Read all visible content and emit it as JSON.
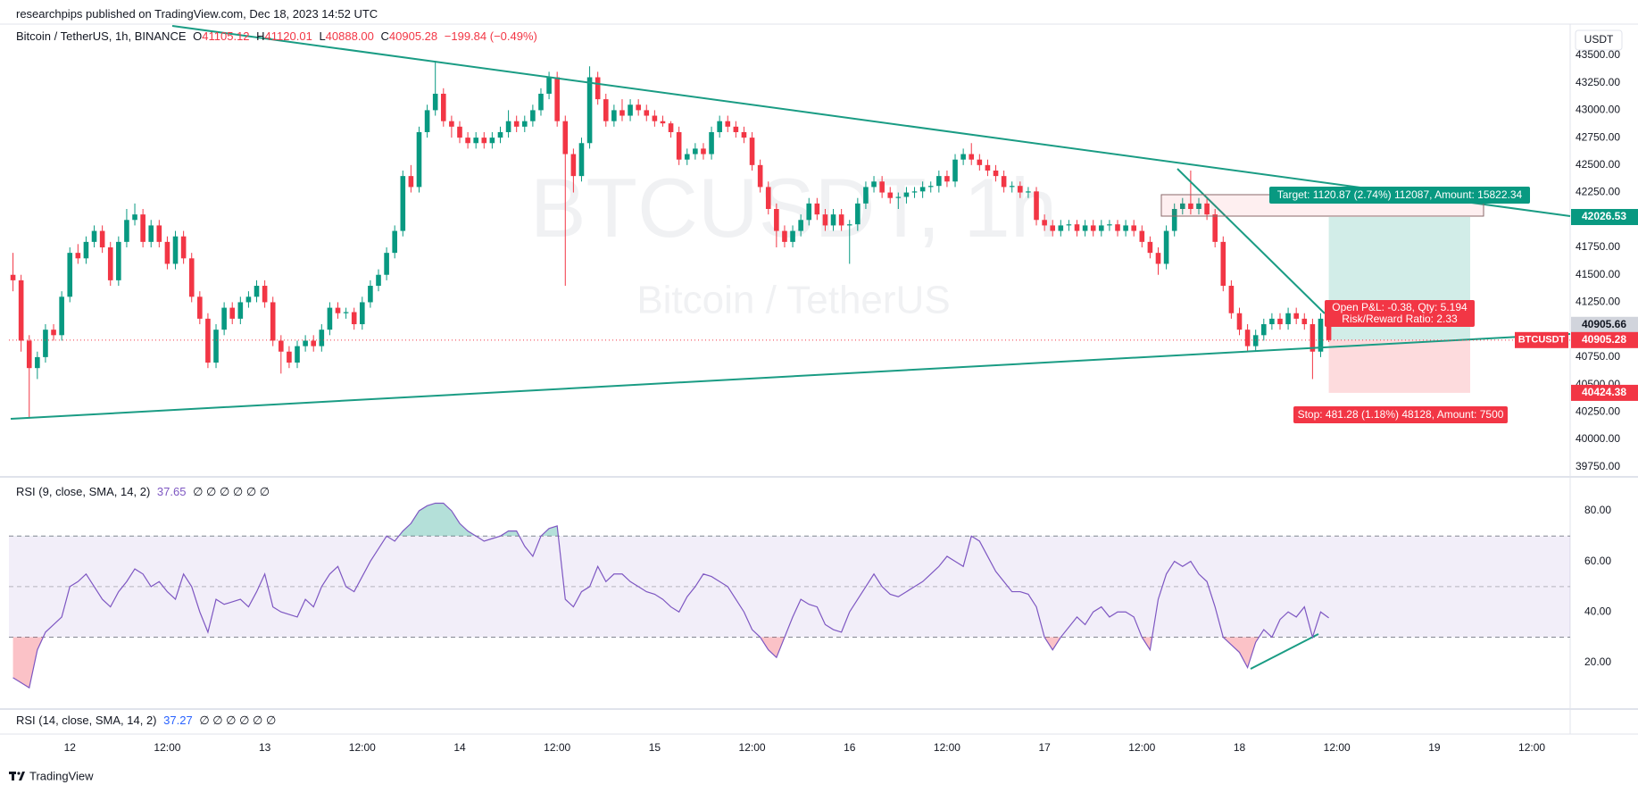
{
  "header": {
    "published": "researchpips published on TradingView.com, Dec 18, 2023 14:52 UTC"
  },
  "chart_data": {
    "type": "candlestick",
    "symbol": "Bitcoin / TetherUS, 1h, BINANCE",
    "ohlc_legend": [
      {
        "label": "O",
        "value": "41105.12"
      },
      {
        "label": "H",
        "value": "41120.01"
      },
      {
        "label": "L",
        "value": "40888.00"
      },
      {
        "label": "C",
        "value": "40905.28"
      }
    ],
    "change": "−199.84 (−0.49%)",
    "currency": "USDT",
    "watermark": {
      "symbol": "BTCUSDT, 1h",
      "description": "Bitcoin / TetherUS"
    },
    "up_color": "#089981",
    "down_color": "#f23645",
    "grid": false,
    "xlim": [
      -0.5,
      191.5
    ],
    "xticks": [
      {
        "value": 7,
        "label": "12"
      },
      {
        "value": 19,
        "label": "12:00"
      },
      {
        "value": 31,
        "label": "13"
      },
      {
        "value": 43,
        "label": "12:00"
      },
      {
        "value": 55,
        "label": "14"
      },
      {
        "value": 67,
        "label": "12:00"
      },
      {
        "value": 79,
        "label": "15"
      },
      {
        "value": 91,
        "label": "12:00"
      },
      {
        "value": 103,
        "label": "16"
      },
      {
        "value": 115,
        "label": "12:00"
      },
      {
        "value": 127,
        "label": "17"
      },
      {
        "value": 139,
        "label": "12:00"
      },
      {
        "value": 151,
        "label": "18"
      },
      {
        "value": 163,
        "label": "12:00"
      },
      {
        "value": 175,
        "label": "19"
      },
      {
        "value": 187,
        "label": "12:00"
      }
    ],
    "ylim": [
      39675,
      43760
    ],
    "yticks": [
      {
        "value": 39750,
        "label": "39750.00"
      },
      {
        "value": 40000,
        "label": "40000.00"
      },
      {
        "value": 40250,
        "label": "40250.00"
      },
      {
        "value": 40500,
        "label": "40500.00"
      },
      {
        "value": 40750,
        "label": "40750.00"
      },
      {
        "value": 41000,
        "label": "41000.00"
      },
      {
        "value": 41250,
        "label": "41250.00"
      },
      {
        "value": 41500,
        "label": "41500.00"
      },
      {
        "value": 41750,
        "label": "41750.00"
      },
      {
        "value": 42000,
        "label": "42000.00"
      },
      {
        "value": 42250,
        "label": "42250.00"
      },
      {
        "value": 42500,
        "label": "42500.00"
      },
      {
        "value": 42750,
        "label": "42750.00"
      },
      {
        "value": 43000,
        "label": "43000.00"
      },
      {
        "value": 43250,
        "label": "43250.00"
      },
      {
        "value": 43500,
        "label": "43500.00"
      }
    ],
    "ohlc": [
      [
        41500,
        41700,
        41350,
        41450
      ],
      [
        41450,
        41500,
        40800,
        40900
      ],
      [
        40900,
        40950,
        40200,
        40650
      ],
      [
        40650,
        40800,
        40550,
        40750
      ],
      [
        40750,
        41050,
        40700,
        41000
      ],
      [
        41000,
        41050,
        40900,
        40950
      ],
      [
        40950,
        41350,
        40900,
        41300
      ],
      [
        41300,
        41750,
        41250,
        41700
      ],
      [
        41700,
        41780,
        41600,
        41650
      ],
      [
        41650,
        41850,
        41600,
        41800
      ],
      [
        41800,
        41950,
        41750,
        41900
      ],
      [
        41900,
        41950,
        41700,
        41750
      ],
      [
        41750,
        41800,
        41400,
        41450
      ],
      [
        41450,
        41850,
        41400,
        41800
      ],
      [
        41800,
        42100,
        41750,
        42000
      ],
      [
        42000,
        42150,
        41950,
        42050
      ],
      [
        42050,
        42100,
        41750,
        41800
      ],
      [
        41800,
        42000,
        41750,
        41950
      ],
      [
        41950,
        42000,
        41750,
        41800
      ],
      [
        41800,
        41850,
        41550,
        41600
      ],
      [
        41600,
        41900,
        41550,
        41850
      ],
      [
        41850,
        41900,
        41600,
        41650
      ],
      [
        41650,
        41700,
        41250,
        41300
      ],
      [
        41300,
        41350,
        41050,
        41100
      ],
      [
        41100,
        41150,
        40650,
        40700
      ],
      [
        40700,
        41050,
        40650,
        41000
      ],
      [
        41000,
        41250,
        40950,
        41200
      ],
      [
        41200,
        41250,
        41050,
        41100
      ],
      [
        41100,
        41300,
        41050,
        41250
      ],
      [
        41250,
        41350,
        41200,
        41300
      ],
      [
        41300,
        41450,
        41250,
        41400
      ],
      [
        41400,
        41450,
        41200,
        41250
      ],
      [
        41250,
        41300,
        40850,
        40900
      ],
      [
        40900,
        40950,
        40600,
        40800
      ],
      [
        40800,
        40850,
        40650,
        40700
      ],
      [
        40700,
        40900,
        40650,
        40850
      ],
      [
        40850,
        40950,
        40800,
        40900
      ],
      [
        40900,
        40950,
        40800,
        40850
      ],
      [
        40850,
        41050,
        40800,
        41000
      ],
      [
        41000,
        41250,
        40950,
        41200
      ],
      [
        41200,
        41250,
        41100,
        41150
      ],
      [
        41150,
        41200,
        41100,
        41160
      ],
      [
        41160,
        41200,
        41000,
        41050
      ],
      [
        41050,
        41300,
        41000,
        41250
      ],
      [
        41250,
        41450,
        41200,
        41400
      ],
      [
        41400,
        41550,
        41350,
        41500
      ],
      [
        41500,
        41750,
        41450,
        41700
      ],
      [
        41700,
        41950,
        41650,
        41900
      ],
      [
        41900,
        42450,
        41850,
        42400
      ],
      [
        42400,
        42500,
        42250,
        42300
      ],
      [
        42300,
        42850,
        42250,
        42800
      ],
      [
        42800,
        43050,
        42750,
        43000
      ],
      [
        43000,
        43450,
        42950,
        43150
      ],
      [
        43150,
        43200,
        42850,
        42900
      ],
      [
        42900,
        42950,
        42750,
        42850
      ],
      [
        42850,
        42900,
        42700,
        42750
      ],
      [
        42750,
        42800,
        42650,
        42700
      ],
      [
        42700,
        42800,
        42650,
        42750
      ],
      [
        42750,
        42800,
        42650,
        42700
      ],
      [
        42700,
        42800,
        42650,
        42750
      ],
      [
        42750,
        42850,
        42700,
        42800
      ],
      [
        42800,
        43000,
        42750,
        42900
      ],
      [
        42900,
        42950,
        42800,
        42850
      ],
      [
        42850,
        42950,
        42800,
        42900
      ],
      [
        42900,
        43050,
        42850,
        43000
      ],
      [
        43000,
        43200,
        42950,
        43150
      ],
      [
        43150,
        43350,
        43100,
        43300
      ],
      [
        43300,
        43350,
        42850,
        42900
      ],
      [
        42900,
        42950,
        41400,
        42600
      ],
      [
        42600,
        42650,
        42250,
        42400
      ],
      [
        42400,
        42750,
        42350,
        42700
      ],
      [
        42700,
        43400,
        42650,
        43300
      ],
      [
        43300,
        43350,
        43050,
        43100
      ],
      [
        43100,
        43150,
        42850,
        42900
      ],
      [
        42900,
        43050,
        42850,
        43000
      ],
      [
        43000,
        43100,
        42900,
        42950
      ],
      [
        42950,
        43100,
        42900,
        43050
      ],
      [
        43050,
        43100,
        42950,
        43000
      ],
      [
        43000,
        43050,
        42900,
        42950
      ],
      [
        42950,
        43000,
        42850,
        42900
      ],
      [
        42900,
        42950,
        42850,
        42880
      ],
      [
        42880,
        42900,
        42750,
        42800
      ],
      [
        42800,
        42850,
        42500,
        42550
      ],
      [
        42550,
        42650,
        42500,
        42600
      ],
      [
        42600,
        42700,
        42550,
        42650
      ],
      [
        42650,
        42700,
        42550,
        42600
      ],
      [
        42600,
        42850,
        42550,
        42800
      ],
      [
        42800,
        42950,
        42750,
        42900
      ],
      [
        42900,
        42950,
        42800,
        42850
      ],
      [
        42850,
        42900,
        42750,
        42800
      ],
      [
        42800,
        42850,
        42700,
        42750
      ],
      [
        42750,
        42800,
        42450,
        42500
      ],
      [
        42500,
        42550,
        42250,
        42300
      ],
      [
        42300,
        42350,
        42050,
        42100
      ],
      [
        42100,
        42150,
        41750,
        41900
      ],
      [
        41900,
        41950,
        41750,
        41800
      ],
      [
        41800,
        41950,
        41750,
        41900
      ],
      [
        41900,
        42050,
        41850,
        42000
      ],
      [
        42000,
        42200,
        41950,
        42150
      ],
      [
        42150,
        42200,
        42000,
        42050
      ],
      [
        42050,
        42100,
        41900,
        41950
      ],
      [
        41950,
        42100,
        41900,
        42050
      ],
      [
        42050,
        42100,
        41900,
        41950
      ],
      [
        41950,
        42000,
        41600,
        41960
      ],
      [
        41960,
        42200,
        41900,
        42150
      ],
      [
        42150,
        42350,
        42100,
        42300
      ],
      [
        42300,
        42400,
        42250,
        42350
      ],
      [
        42350,
        42400,
        42200,
        42250
      ],
      [
        42250,
        42300,
        42150,
        42200
      ],
      [
        42200,
        42250,
        42100,
        42210
      ],
      [
        42210,
        42300,
        42150,
        42250
      ],
      [
        42250,
        42300,
        42200,
        42260
      ],
      [
        42260,
        42350,
        42200,
        42300
      ],
      [
        42300,
        42350,
        42250,
        42310
      ],
      [
        42310,
        42450,
        42250,
        42400
      ],
      [
        42400,
        42450,
        42300,
        42350
      ],
      [
        42350,
        42600,
        42300,
        42550
      ],
      [
        42550,
        42650,
        42500,
        42600
      ],
      [
        42600,
        42700,
        42500,
        42550
      ],
      [
        42550,
        42600,
        42450,
        42500
      ],
      [
        42500,
        42550,
        42400,
        42450
      ],
      [
        42450,
        42500,
        42350,
        42400
      ],
      [
        42400,
        42450,
        42250,
        42300
      ],
      [
        42300,
        42350,
        42250,
        42310
      ],
      [
        42310,
        42350,
        42200,
        42250
      ],
      [
        42250,
        42300,
        42200,
        42260
      ],
      [
        42260,
        42300,
        41950,
        42000
      ],
      [
        42000,
        42050,
        41900,
        41950
      ],
      [
        41950,
        42000,
        41850,
        41900
      ],
      [
        41900,
        42000,
        41850,
        41950
      ],
      [
        41950,
        42000,
        41900,
        41960
      ],
      [
        41960,
        42000,
        41850,
        41900
      ],
      [
        41900,
        42000,
        41850,
        41950
      ],
      [
        41950,
        42000,
        41850,
        41900
      ],
      [
        41900,
        42000,
        41850,
        41950
      ],
      [
        41950,
        42000,
        41900,
        41960
      ],
      [
        41960,
        42000,
        41850,
        41900
      ],
      [
        41900,
        42000,
        41850,
        41950
      ],
      [
        41950,
        42000,
        41850,
        41900
      ],
      [
        41900,
        41950,
        41750,
        41800
      ],
      [
        41800,
        41850,
        41650,
        41700
      ],
      [
        41700,
        41750,
        41500,
        41600
      ],
      [
        41600,
        41950,
        41550,
        41900
      ],
      [
        41900,
        42150,
        41850,
        42100
      ],
      [
        42100,
        42200,
        42050,
        42150
      ],
      [
        42150,
        42450,
        42050,
        42100
      ],
      [
        42100,
        42200,
        42050,
        42150
      ],
      [
        42150,
        42200,
        42000,
        42050
      ],
      [
        42050,
        42100,
        41750,
        41800
      ],
      [
        41800,
        41850,
        41350,
        41400
      ],
      [
        41400,
        41450,
        41100,
        41150
      ],
      [
        41150,
        41200,
        40950,
        41000
      ],
      [
        41000,
        41050,
        40800,
        40850
      ],
      [
        40850,
        41000,
        40800,
        40950
      ],
      [
        40950,
        41100,
        40900,
        41050
      ],
      [
        41050,
        41150,
        41000,
        41100
      ],
      [
        41100,
        41150,
        41000,
        41050
      ],
      [
        41050,
        41200,
        41000,
        41150
      ],
      [
        41150,
        41200,
        41050,
        41100
      ],
      [
        41100,
        41150,
        41000,
        41050
      ],
      [
        41050,
        41100,
        40550,
        40800
      ],
      [
        40800,
        41150,
        40750,
        41100
      ],
      [
        41105.12,
        41120.01,
        40888.0,
        40905.28
      ]
    ],
    "last_price_tag": "BTCUSDT",
    "position": {
      "entry": 40905.66,
      "target": 42026.53,
      "stop": 40424.38,
      "target_label": "Target: 1120.87 (2.74%) 112087, Amount: 15822.34",
      "pnl_label": "Open P&L: -0.38, Qty: 5.194",
      "ratio_label": "Risk/Reward Ratio: 2.33",
      "stop_label": "Stop: 481.28 (1.18%) 48128, Amount: 7500"
    },
    "rsi": {
      "type": "line",
      "title": "RSI (9, close, SMA, 14, 2)",
      "flags": "∅ ∅ ∅ ∅ ∅ ∅",
      "color": "#7e57c2",
      "ylim": [
        3,
        92
      ],
      "yticks": [
        {
          "value": 20,
          "label": "20.00"
        },
        {
          "value": 40,
          "label": "40.00"
        },
        {
          "value": 60,
          "label": "60.00"
        },
        {
          "value": 80,
          "label": "80.00"
        }
      ],
      "levels": [
        70,
        50,
        30
      ],
      "values": [
        14,
        12,
        10,
        25,
        32,
        35,
        38,
        50,
        52,
        55,
        50,
        45,
        42,
        48,
        52,
        57,
        55,
        50,
        52,
        48,
        45,
        55,
        50,
        40,
        32,
        45,
        43,
        44,
        45,
        42,
        48,
        55,
        42,
        40,
        39,
        38,
        45,
        42,
        50,
        55,
        58,
        50,
        48,
        54,
        60,
        65,
        70,
        68,
        72,
        75,
        80,
        82,
        83,
        83,
        80,
        75,
        72,
        70,
        68,
        69,
        70,
        72,
        72,
        66,
        62,
        70,
        73,
        74,
        45,
        42,
        48,
        50,
        58,
        52,
        55,
        55,
        52,
        50,
        48,
        47,
        45,
        42,
        40,
        46,
        50,
        55,
        54,
        52,
        50,
        45,
        40,
        33,
        30,
        25,
        22,
        30,
        38,
        45,
        43,
        42,
        35,
        33,
        32,
        40,
        45,
        50,
        55,
        50,
        47,
        46,
        48,
        50,
        52,
        55,
        58,
        62,
        60,
        58,
        70,
        68,
        62,
        56,
        52,
        48,
        48,
        47,
        42,
        30,
        25,
        30,
        34,
        38,
        35,
        40,
        42,
        38,
        40,
        40,
        38,
        30,
        25,
        45,
        55,
        60,
        58,
        60,
        55,
        52,
        42,
        30,
        27,
        24,
        18,
        28,
        33,
        30,
        37,
        40,
        38,
        42,
        30,
        40,
        37.65
      ]
    },
    "rsi2": {
      "title": "RSI (14, close, SMA, 14, 2)",
      "last_value": 37.27,
      "flags": "∅ ∅ ∅ ∅ ∅ ∅",
      "color": "#2962ff"
    }
  },
  "footer": {
    "brand": "TradingView"
  }
}
